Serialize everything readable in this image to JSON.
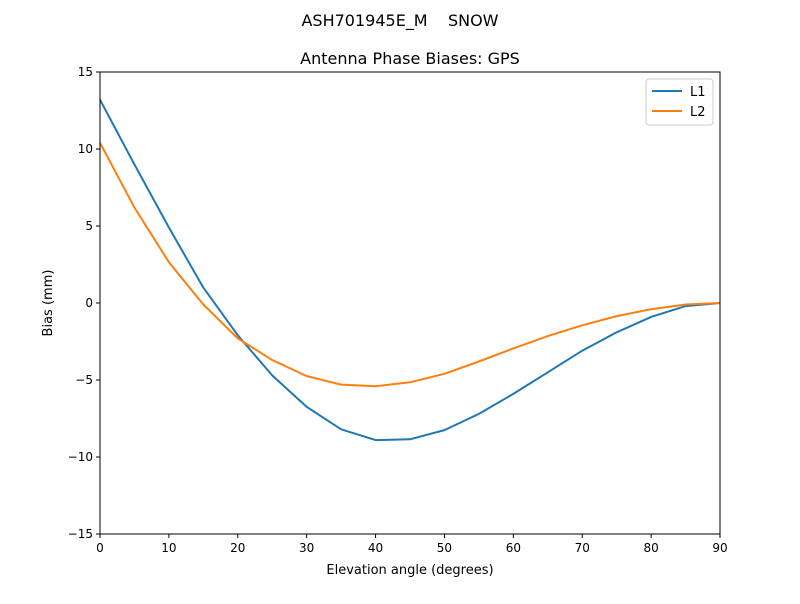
{
  "chart_data": {
    "type": "line",
    "suptitle": "ASH701945E_M    SNOW",
    "title": "Antenna Phase Biases: GPS",
    "xlabel": "Elevation angle (degrees)",
    "ylabel": "Bias (mm)",
    "xlim": [
      0,
      90
    ],
    "ylim": [
      -15,
      15
    ],
    "xticks": [
      0,
      10,
      20,
      30,
      40,
      50,
      60,
      70,
      80,
      90
    ],
    "yticks": [
      -15,
      -10,
      -5,
      0,
      5,
      10,
      15
    ],
    "xtick_labels": [
      "0",
      "10",
      "20",
      "30",
      "40",
      "50",
      "60",
      "70",
      "80",
      "90"
    ],
    "ytick_labels": [
      "−15",
      "−10",
      "−5",
      "0",
      "5",
      "10",
      "15"
    ],
    "grid": false,
    "legend_placement": "top-right",
    "x": [
      0,
      5,
      10,
      15,
      20,
      25,
      30,
      35,
      40,
      45,
      50,
      55,
      60,
      65,
      70,
      75,
      80,
      85,
      90
    ],
    "series": [
      {
        "name": "L1",
        "color": "#1f77b4",
        "values": [
          13.2,
          9.0,
          4.9,
          1.0,
          -2.1,
          -4.7,
          -6.75,
          -8.2,
          -8.9,
          -8.85,
          -8.25,
          -7.2,
          -5.9,
          -4.5,
          -3.1,
          -1.9,
          -0.9,
          -0.2,
          0.0
        ]
      },
      {
        "name": "L2",
        "color": "#ff7f0e",
        "values": [
          10.4,
          6.2,
          2.65,
          -0.1,
          -2.3,
          -3.7,
          -4.75,
          -5.3,
          -5.4,
          -5.15,
          -4.6,
          -3.8,
          -2.95,
          -2.15,
          -1.45,
          -0.85,
          -0.4,
          -0.1,
          0.0
        ]
      }
    ]
  }
}
